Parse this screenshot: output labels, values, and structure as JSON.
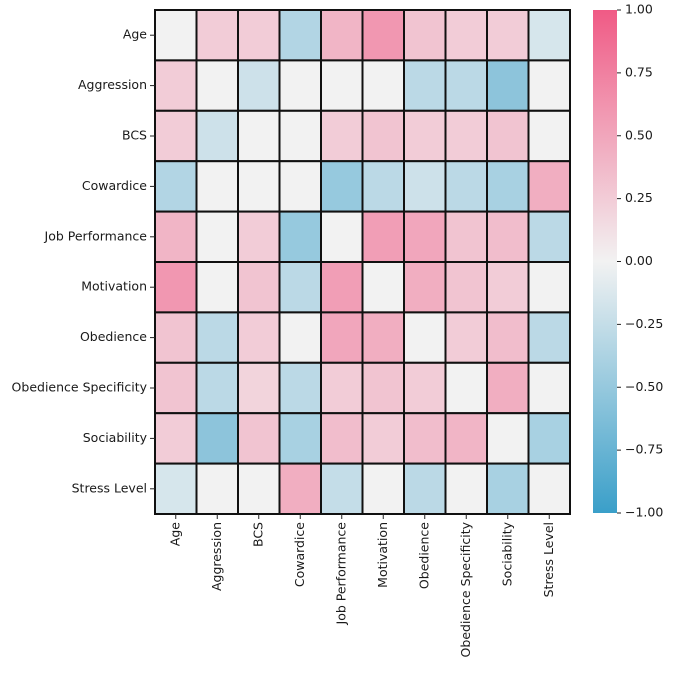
{
  "chart_data": {
    "type": "heatmap",
    "title": "",
    "xlabel": "",
    "ylabel": "",
    "rows": [
      "Age",
      "Aggression",
      "BCS",
      "Cowardice",
      "Job Performance",
      "Motivation",
      "Obedience",
      "Obedience Specificity",
      "Sociability",
      "Stress Level"
    ],
    "columns": [
      "Age",
      "Aggression",
      "BCS",
      "Cowardice",
      "Job Performance",
      "Motivation",
      "Obedience",
      "Obedience Specificity",
      "Sociability",
      "Stress Level"
    ],
    "values": [
      [
        0.0,
        0.25,
        0.25,
        -0.35,
        0.4,
        0.6,
        0.3,
        0.25,
        0.25,
        -0.15
      ],
      [
        0.25,
        0.0,
        -0.2,
        0.0,
        0.0,
        0.0,
        -0.3,
        -0.3,
        -0.55,
        0.0
      ],
      [
        0.25,
        -0.2,
        0.0,
        0.0,
        0.25,
        0.3,
        0.25,
        0.25,
        0.3,
        0.0
      ],
      [
        -0.35,
        0.0,
        0.0,
        0.0,
        -0.5,
        -0.3,
        -0.2,
        -0.3,
        -0.4,
        0.45
      ],
      [
        0.4,
        0.0,
        0.25,
        -0.5,
        0.0,
        0.55,
        0.5,
        0.3,
        0.35,
        -0.3
      ],
      [
        0.6,
        0.0,
        0.3,
        -0.3,
        0.55,
        0.0,
        0.45,
        0.3,
        0.25,
        0.0
      ],
      [
        0.3,
        -0.3,
        0.25,
        0.0,
        0.5,
        0.45,
        0.0,
        0.25,
        0.35,
        -0.3
      ],
      [
        0.3,
        -0.3,
        0.2,
        -0.3,
        0.25,
        0.3,
        0.25,
        0.0,
        0.45,
        0.0
      ],
      [
        0.25,
        -0.55,
        0.3,
        -0.4,
        0.35,
        0.25,
        0.35,
        0.4,
        0.0,
        -0.4
      ],
      [
        -0.15,
        0.0,
        0.0,
        0.45,
        -0.25,
        0.0,
        -0.3,
        0.0,
        -0.4,
        0.0
      ]
    ],
    "vmin": -1.0,
    "vmax": 1.0,
    "colorbar_ticks": [
      "1.00",
      "0.75",
      "0.50",
      "0.25",
      "0.00",
      "−0.25",
      "−0.50",
      "−0.75",
      "−1.00"
    ],
    "colorbar_tick_values": [
      1.0,
      0.75,
      0.5,
      0.25,
      0.0,
      -0.25,
      -0.5,
      -0.75,
      -1.0
    ],
    "colors": {
      "negative": "#3a9fc9",
      "neutral": "#f2f2f2",
      "positive": "#f05a85",
      "cell_border": "#111111"
    }
  }
}
